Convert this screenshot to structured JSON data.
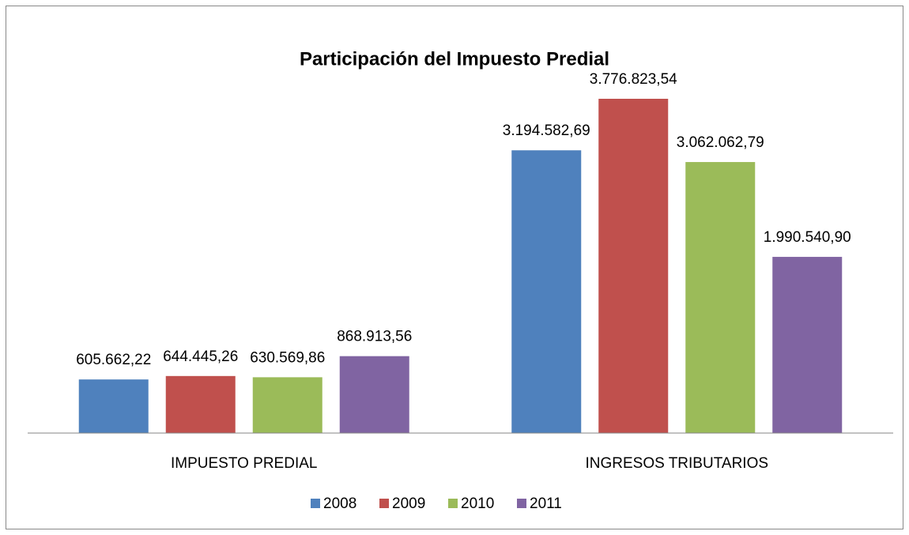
{
  "chart_data": {
    "type": "bar",
    "title": "Participación del Impuesto Predial",
    "categories": [
      "IMPUESTO PREDIAL",
      "INGRESOS TRIBUTARIOS"
    ],
    "series": [
      {
        "name": "2008",
        "color": "#4f81bd",
        "values": [
          605662.22,
          3194582.69
        ],
        "value_labels": [
          "605.662,22",
          "3.194.582,69"
        ]
      },
      {
        "name": "2009",
        "color": "#c0504d",
        "values": [
          644445.26,
          3776823.54
        ],
        "value_labels": [
          "644.445,26",
          "3.776.823,54"
        ]
      },
      {
        "name": "2010",
        "color": "#9bbb59",
        "values": [
          630569.86,
          3062062.79
        ],
        "value_labels": [
          "630.569,86",
          "3.062.062,79"
        ]
      },
      {
        "name": "2011",
        "color": "#8064a2",
        "values": [
          868913.56,
          1990540.9
        ],
        "value_labels": [
          "868.913,56",
          "1.990.540,90"
        ]
      }
    ],
    "ylim": [
      0,
      4000000
    ],
    "legend": "bottom"
  }
}
